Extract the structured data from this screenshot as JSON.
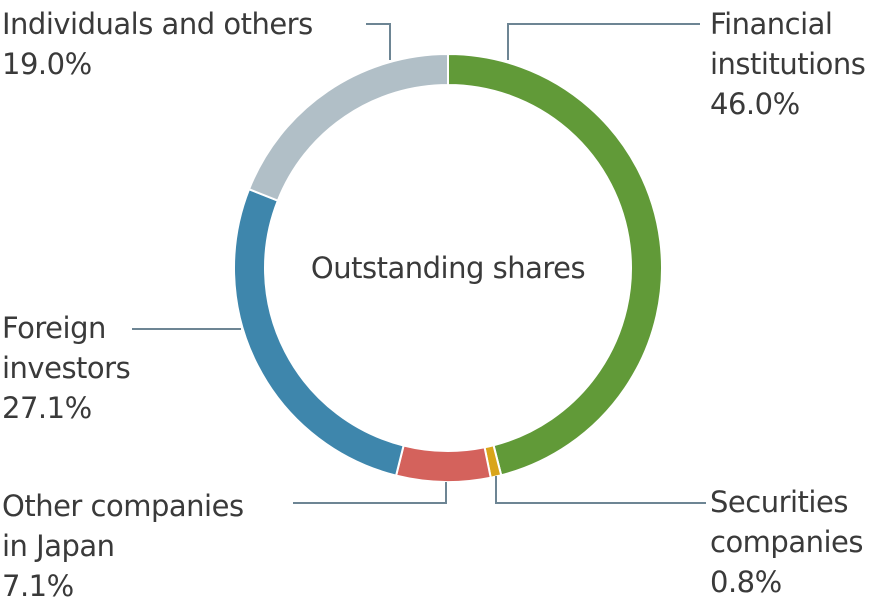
{
  "chart_data": {
    "type": "pie",
    "style": "donut",
    "title": "Outstanding shares",
    "categories": [
      "Financial institutions",
      "Securities companies",
      "Other companies in Japan",
      "Foreign investors",
      "Individuals and others"
    ],
    "values": [
      46.0,
      0.8,
      7.1,
      27.1,
      19.0
    ],
    "value_labels": [
      "46.0%",
      "0.8%",
      "7.1%",
      "27.1%",
      "19.0%"
    ],
    "label_lines": [
      [
        "Financial",
        "institutions"
      ],
      [
        "Securities",
        "companies"
      ],
      [
        "Other companies",
        "in Japan"
      ],
      [
        "Foreign",
        "investors"
      ],
      [
        "Individuals and others"
      ]
    ],
    "colors": [
      "#619a38",
      "#d9a51b",
      "#d4625c",
      "#3e86ac",
      "#b1bfc7"
    ],
    "leader_line_color": "#6d8594",
    "legend": "none"
  }
}
